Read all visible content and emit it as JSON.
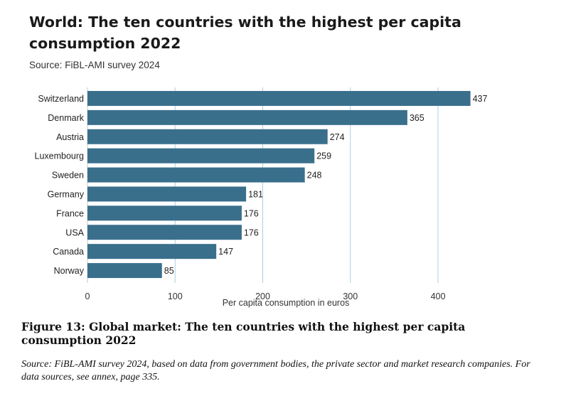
{
  "chart_data": {
    "type": "bar",
    "orientation": "horizontal",
    "title": "World: The ten countries with the highest per capita consumption 2022",
    "subtitle": "Source: FiBL-AMI survey 2024",
    "categories": [
      "Switzerland",
      "Denmark",
      "Austria",
      "Luxembourg",
      "Sweden",
      "Germany",
      "France",
      "USA",
      "Canada",
      "Norway"
    ],
    "values": [
      437,
      365,
      274,
      259,
      248,
      181,
      176,
      176,
      147,
      85
    ],
    "xlabel": "Per capita consumption in euros",
    "ylabel": "",
    "xlim": [
      0,
      450
    ],
    "xticks": [
      0,
      100,
      200,
      300,
      400
    ],
    "grid": true,
    "bar_color": "#3a6f8c",
    "grid_color": "#a9cfe6"
  },
  "caption": {
    "figure": "Figure 13: Global market: The ten countries with the highest per capita consumption 2022",
    "note": "Source: FiBL-AMI survey 2024, based on data from government bodies, the private sector and market research companies. For data sources, see annex, page 335."
  }
}
